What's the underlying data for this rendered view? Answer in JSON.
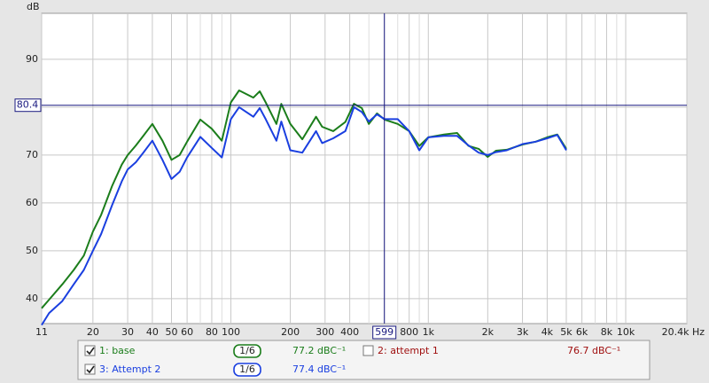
{
  "chart_data": {
    "type": "line",
    "y_label": "dB",
    "log_x": true,
    "grid": true,
    "xlim": [
      11,
      20400
    ],
    "ylim": [
      34.8,
      99.6
    ],
    "xticks": [
      11,
      20,
      30,
      40,
      50,
      60,
      80,
      100,
      200,
      300,
      400,
      800,
      {
        "value": 1000,
        "label": "1k"
      },
      {
        "value": 2000,
        "label": "2k"
      },
      {
        "value": 3000,
        "label": "3k"
      },
      {
        "value": 4000,
        "label": "4k"
      },
      {
        "value": 5000,
        "label": "5k"
      },
      {
        "value": 6000,
        "label": "6k"
      },
      {
        "value": 8000,
        "label": "8k"
      },
      {
        "value": 10000,
        "label": "10k"
      },
      {
        "value": 20400,
        "label": "20.4k Hz"
      }
    ],
    "minor_xticks": [
      70,
      90,
      500,
      600,
      700,
      900,
      7000,
      9000
    ],
    "yticks": [
      40,
      50,
      60,
      70,
      90
    ],
    "minor_yticks": [
      80
    ],
    "cursor": {
      "x": 599,
      "y": 80.4,
      "color": "#1a1a80"
    },
    "x": [
      11,
      12,
      14,
      16,
      18,
      20,
      22,
      25,
      28,
      30,
      33,
      36,
      40,
      45,
      50,
      55,
      60,
      70,
      80,
      90,
      100,
      110,
      130,
      140,
      150,
      170,
      180,
      200,
      230,
      270,
      290,
      330,
      380,
      420,
      460,
      500,
      550,
      600,
      700,
      800,
      900,
      1000,
      1200,
      1400,
      1600,
      1800,
      2000,
      2200,
      2500,
      3000,
      3500,
      4000,
      4500,
      5000
    ],
    "series": [
      {
        "name": "1: base",
        "color": "#1b7d1b",
        "smoothing": "1/6",
        "readout": "77.2 dBC⁻¹",
        "checked": true,
        "values": [
          38,
          39.8,
          43,
          46,
          49,
          54,
          57.5,
          63.5,
          68,
          70,
          72,
          74,
          76.5,
          73,
          69,
          70,
          72.8,
          77.4,
          75.5,
          73,
          81,
          83.5,
          82,
          83.3,
          81,
          76.5,
          80.7,
          76.5,
          73.3,
          78,
          75.9,
          75,
          76.9,
          80.7,
          79.8,
          76.5,
          78.7,
          77.4,
          76.5,
          75,
          71.9,
          73.7,
          74.3,
          74.6,
          71.9,
          71.3,
          69.6,
          70.9,
          71.1,
          72.2,
          72.8,
          73.7,
          74.3,
          71.3
        ]
      },
      {
        "name": "3: Attempt 2",
        "color": "#1a3fe0",
        "smoothing": "1/6",
        "readout": "77.4 dBC⁻¹",
        "checked": true,
        "values": [
          34.5,
          37,
          39.5,
          43,
          46,
          50,
          53.5,
          59.5,
          64.5,
          67,
          68.5,
          70.5,
          73,
          69,
          65,
          66.5,
          69.5,
          73.8,
          71.5,
          69.5,
          77.5,
          80,
          78,
          79.8,
          77.5,
          73,
          77,
          71,
          70.5,
          75,
          72.5,
          73.5,
          75,
          80,
          79,
          77,
          78.5,
          77.5,
          77.5,
          75,
          71,
          73.7,
          74,
          74,
          72,
          70.5,
          70,
          70.6,
          71,
          72.3,
          72.8,
          73.5,
          74.2,
          71
        ]
      }
    ],
    "other_series": [
      {
        "name": "2: attempt 1",
        "color": "#a01010",
        "readout": "76.7 dBC⁻¹",
        "checked": false
      }
    ]
  }
}
